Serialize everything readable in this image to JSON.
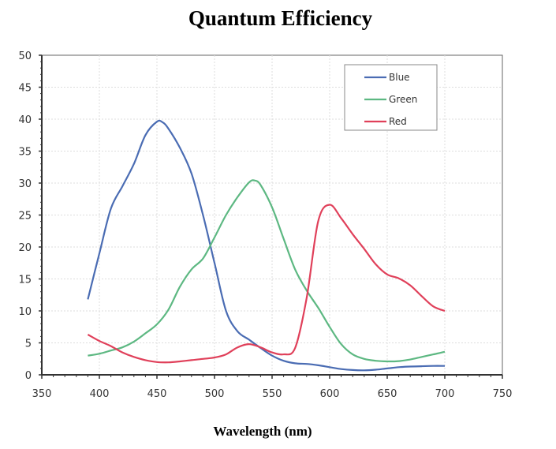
{
  "chart_data": {
    "type": "line",
    "title": "Quantum Efficiency",
    "xlabel": "Wavelength (nm)",
    "ylabel": "",
    "xlim": [
      350,
      750
    ],
    "ylim": [
      0,
      50
    ],
    "xticks": [
      350,
      400,
      450,
      500,
      550,
      600,
      650,
      700,
      750
    ],
    "yticks": [
      0,
      5,
      10,
      15,
      20,
      25,
      30,
      35,
      40,
      45,
      50
    ],
    "grid": true,
    "legend_position": "top-right",
    "series": [
      {
        "name": "Blue",
        "color": "#4a6cb3",
        "points": [
          [
            390,
            11.8
          ],
          [
            400,
            19
          ],
          [
            410,
            26
          ],
          [
            420,
            29.5
          ],
          [
            430,
            33
          ],
          [
            440,
            37.5
          ],
          [
            450,
            39.6
          ],
          [
            455,
            39.5
          ],
          [
            460,
            38.5
          ],
          [
            470,
            35.5
          ],
          [
            480,
            31.5
          ],
          [
            490,
            25
          ],
          [
            500,
            17.5
          ],
          [
            510,
            10
          ],
          [
            520,
            6.8
          ],
          [
            530,
            5.5
          ],
          [
            540,
            4.2
          ],
          [
            550,
            3
          ],
          [
            560,
            2.2
          ],
          [
            570,
            1.8
          ],
          [
            580,
            1.7
          ],
          [
            590,
            1.5
          ],
          [
            600,
            1.2
          ],
          [
            610,
            0.9
          ],
          [
            620,
            0.75
          ],
          [
            630,
            0.7
          ],
          [
            640,
            0.8
          ],
          [
            650,
            1.0
          ],
          [
            660,
            1.2
          ],
          [
            670,
            1.3
          ],
          [
            680,
            1.35
          ],
          [
            690,
            1.4
          ],
          [
            700,
            1.4
          ]
        ]
      },
      {
        "name": "Green",
        "color": "#5db882",
        "points": [
          [
            390,
            3
          ],
          [
            400,
            3.3
          ],
          [
            410,
            3.8
          ],
          [
            420,
            4.3
          ],
          [
            430,
            5.2
          ],
          [
            440,
            6.5
          ],
          [
            450,
            7.9
          ],
          [
            460,
            10.2
          ],
          [
            470,
            13.8
          ],
          [
            480,
            16.5
          ],
          [
            490,
            18.2
          ],
          [
            500,
            21.5
          ],
          [
            510,
            25
          ],
          [
            520,
            27.8
          ],
          [
            530,
            30.1
          ],
          [
            535,
            30.4
          ],
          [
            540,
            29.7
          ],
          [
            550,
            26.2
          ],
          [
            560,
            21.3
          ],
          [
            570,
            16.5
          ],
          [
            580,
            13.2
          ],
          [
            590,
            10.5
          ],
          [
            600,
            7.5
          ],
          [
            610,
            4.8
          ],
          [
            620,
            3.2
          ],
          [
            630,
            2.5
          ],
          [
            640,
            2.2
          ],
          [
            650,
            2.1
          ],
          [
            660,
            2.15
          ],
          [
            670,
            2.4
          ],
          [
            680,
            2.8
          ],
          [
            690,
            3.2
          ],
          [
            700,
            3.6
          ]
        ]
      },
      {
        "name": "Red",
        "color": "#e0405a",
        "points": [
          [
            390,
            6.3
          ],
          [
            400,
            5.3
          ],
          [
            410,
            4.5
          ],
          [
            420,
            3.5
          ],
          [
            430,
            2.8
          ],
          [
            440,
            2.3
          ],
          [
            450,
            2.0
          ],
          [
            460,
            1.95
          ],
          [
            470,
            2.1
          ],
          [
            480,
            2.3
          ],
          [
            490,
            2.5
          ],
          [
            500,
            2.7
          ],
          [
            510,
            3.2
          ],
          [
            520,
            4.3
          ],
          [
            530,
            4.8
          ],
          [
            540,
            4.3
          ],
          [
            550,
            3.5
          ],
          [
            560,
            3.2
          ],
          [
            570,
            4.2
          ],
          [
            580,
            12
          ],
          [
            590,
            24
          ],
          [
            600,
            26.6
          ],
          [
            610,
            24.5
          ],
          [
            620,
            22
          ],
          [
            630,
            19.7
          ],
          [
            640,
            17.3
          ],
          [
            650,
            15.7
          ],
          [
            660,
            15.1
          ],
          [
            670,
            14
          ],
          [
            680,
            12.3
          ],
          [
            690,
            10.7
          ],
          [
            700,
            10
          ]
        ]
      }
    ]
  }
}
